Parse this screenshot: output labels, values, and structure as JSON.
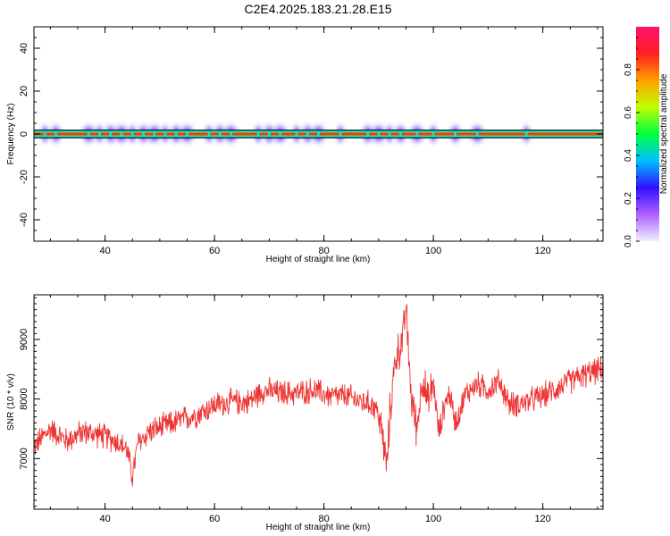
{
  "title": "C2E4.2025.183.21.28.E15",
  "chart_data": [
    {
      "type": "heatmap",
      "title": "C2E4.2025.183.21.28.E15",
      "xlabel": "Height of straight line (km)",
      "ylabel": "Frequency (Hz)",
      "xlim": [
        27,
        131
      ],
      "ylim": [
        -50,
        50
      ],
      "xticks": [
        40,
        60,
        80,
        100,
        120
      ],
      "yticks": [
        40,
        20,
        0,
        -20,
        -40
      ],
      "grid": false,
      "colorbar": {
        "label": "Normalized spectral amplitude",
        "range": [
          0,
          1
        ],
        "ticks": [
          "0.0",
          "0.2",
          "0.4",
          "0.6",
          "0.8"
        ],
        "colors": [
          "#f0f0ff",
          "#b060ff",
          "#3010ff",
          "#00c0ff",
          "#00ff40",
          "#c0ff00",
          "#ffa000",
          "#ff2020",
          "#ff1070"
        ]
      },
      "band_center_hz": 0,
      "band_halfwidth_hz": 1.5,
      "blobs_x_km": [
        29,
        31,
        37,
        39,
        41,
        43,
        45,
        47,
        49,
        51,
        53,
        55,
        59,
        61,
        63,
        68,
        70,
        72,
        75,
        77,
        79,
        83,
        88,
        90,
        92,
        94,
        97,
        100,
        104,
        108,
        117
      ]
    },
    {
      "type": "line",
      "xlabel": "Height of straight line (km)",
      "ylabel": "SNR (10 * v/v)",
      "xlim": [
        27,
        131
      ],
      "ylim": [
        6150,
        9750
      ],
      "xticks": [
        40,
        60,
        80,
        100,
        120
      ],
      "yticks": [
        9000,
        8000,
        7000
      ],
      "grid": false,
      "series": [
        {
          "color": "#ee3333",
          "x": [
            27,
            30,
            33,
            36,
            39,
            42,
            44,
            45,
            46,
            48,
            51,
            54,
            57,
            60,
            63,
            66,
            69,
            72,
            75,
            78,
            81,
            84,
            87,
            89,
            90,
            91,
            91.5,
            92,
            93,
            94,
            94.5,
            95,
            95.5,
            96,
            97,
            98,
            99,
            100,
            101,
            102,
            103,
            104,
            106,
            108,
            110,
            112,
            114,
            117,
            120,
            123,
            126,
            129,
            131
          ],
          "y": [
            7200,
            7500,
            7300,
            7450,
            7400,
            7300,
            7150,
            6700,
            7250,
            7450,
            7550,
            7650,
            7750,
            7900,
            7950,
            7950,
            8150,
            8100,
            8100,
            8150,
            8050,
            8050,
            7950,
            7900,
            7750,
            7200,
            6800,
            7700,
            8650,
            8900,
            9050,
            9550,
            8700,
            8000,
            7500,
            8400,
            7900,
            8300,
            7400,
            7900,
            8100,
            7600,
            8100,
            8250,
            8150,
            8300,
            7900,
            7950,
            8050,
            8200,
            8350,
            8450,
            8500
          ],
          "noise_amplitude": 260
        }
      ]
    }
  ]
}
